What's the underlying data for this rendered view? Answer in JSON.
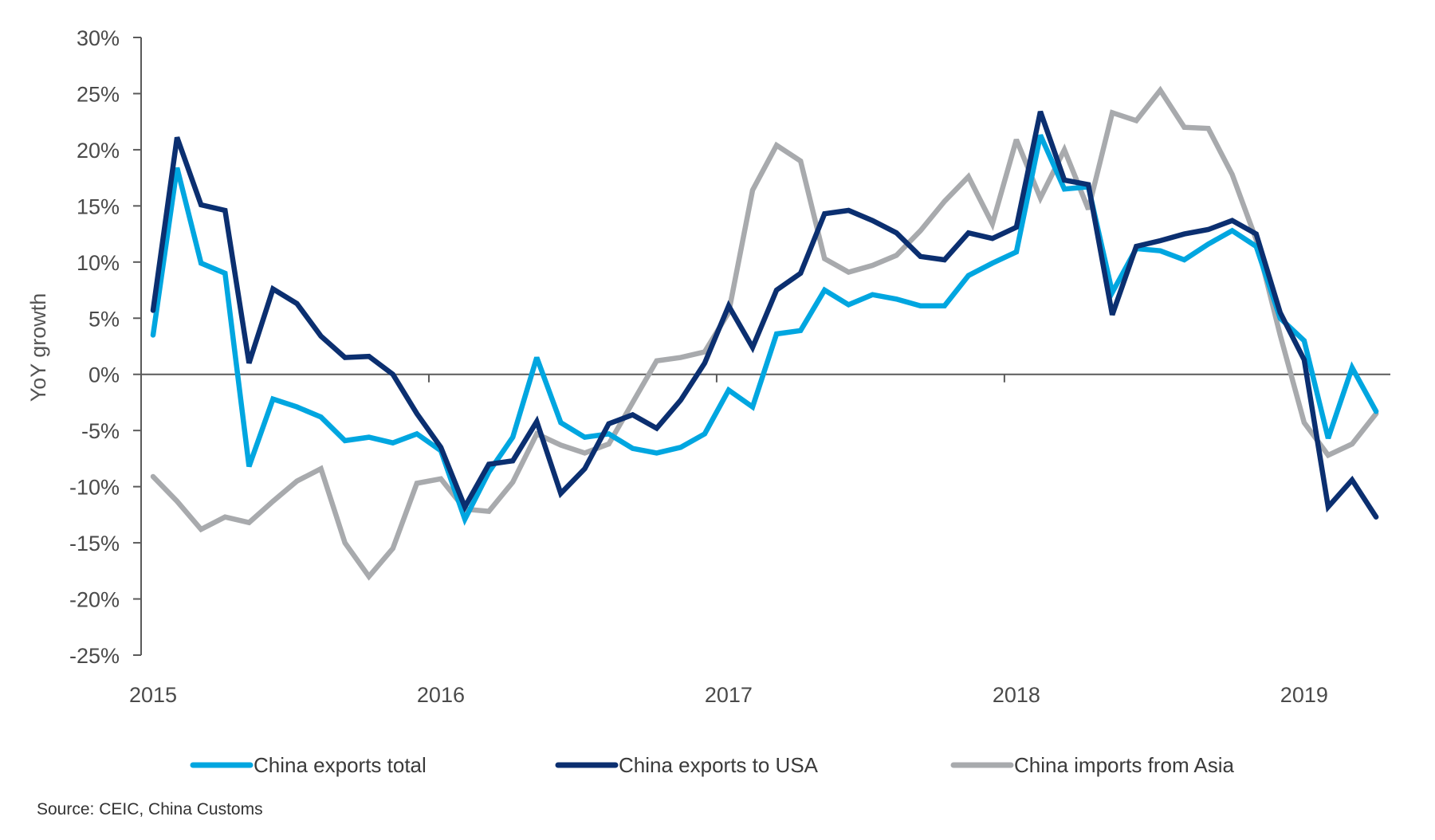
{
  "chart_data": {
    "type": "line",
    "title": "",
    "xlabel": "",
    "ylabel": "YoY growth",
    "ylim": [
      -25,
      30
    ],
    "y_ticks": [
      30,
      25,
      20,
      15,
      10,
      5,
      0,
      -5,
      -10,
      -15,
      -20,
      -25
    ],
    "y_tick_labels": [
      "30%",
      "25%",
      "20%",
      "15%",
      "10%",
      "5%",
      "0%",
      "-5%",
      "-10%",
      "-15%",
      "-20%",
      "-25%"
    ],
    "x_tick_labels": [
      "2015",
      "2016",
      "2017",
      "2018",
      "2019"
    ],
    "x_start": "2015-01",
    "x_frequency": "monthly",
    "n_points": 52,
    "grid": false,
    "legend_position": "bottom",
    "series": [
      {
        "name": "China exports total",
        "color": "#00a6e0",
        "values": [
          3.5,
          18.4,
          9.9,
          9.0,
          -8.2,
          -2.2,
          -2.9,
          -3.8,
          -5.9,
          -5.6,
          -6.1,
          -5.3,
          -6.8,
          -12.9,
          -8.7,
          -5.6,
          1.5,
          -4.3,
          -5.6,
          -5.3,
          -6.6,
          -7.0,
          -6.5,
          -5.3,
          -1.4,
          -2.9,
          3.6,
          3.9,
          7.5,
          6.2,
          7.1,
          6.7,
          6.1,
          6.1,
          8.8,
          9.9,
          10.9,
          21.3,
          16.5,
          16.7,
          7.3,
          11.2,
          11.0,
          10.2,
          11.6,
          12.8,
          11.4,
          5.0,
          3.0,
          -5.7,
          0.6,
          -3.3
        ]
      },
      {
        "name": "China exports to USA",
        "color": "#0b2f70",
        "values": [
          5.7,
          21.1,
          15.1,
          14.6,
          1.0,
          7.6,
          6.3,
          3.4,
          1.5,
          1.6,
          0.0,
          -3.5,
          -6.5,
          -11.8,
          -8.0,
          -7.7,
          -4.2,
          -10.6,
          -8.4,
          -4.4,
          -3.6,
          -4.8,
          -2.3,
          1.0,
          6.1,
          2.4,
          7.5,
          9.0,
          14.3,
          14.6,
          13.7,
          12.6,
          10.5,
          10.2,
          12.6,
          12.1,
          13.1,
          23.4,
          17.3,
          16.9,
          5.3,
          11.4,
          11.9,
          12.5,
          12.9,
          13.7,
          12.5,
          5.5,
          1.3,
          -11.8,
          -9.4,
          -12.7
        ]
      },
      {
        "name": "China imports from Asia",
        "color": "#a8aaad",
        "values": [
          -9.1,
          -11.3,
          -13.8,
          -12.7,
          -13.2,
          -11.3,
          -9.5,
          -8.4,
          -15.0,
          -18.0,
          -15.5,
          -9.7,
          -9.3,
          -12.0,
          -12.2,
          -9.6,
          -5.3,
          -6.3,
          -7.0,
          -6.2,
          -2.5,
          1.2,
          1.5,
          2.0,
          5.5,
          16.4,
          20.4,
          19.0,
          10.3,
          9.1,
          9.7,
          10.6,
          12.8,
          15.4,
          17.6,
          13.4,
          20.9,
          15.7,
          20.0,
          14.7,
          23.3,
          22.6,
          25.3,
          22.0,
          21.9,
          17.8,
          12.0,
          3.5,
          -4.3,
          -7.2,
          -6.2,
          -3.5
        ]
      }
    ],
    "source": "Source: CEIC, China Customs"
  }
}
